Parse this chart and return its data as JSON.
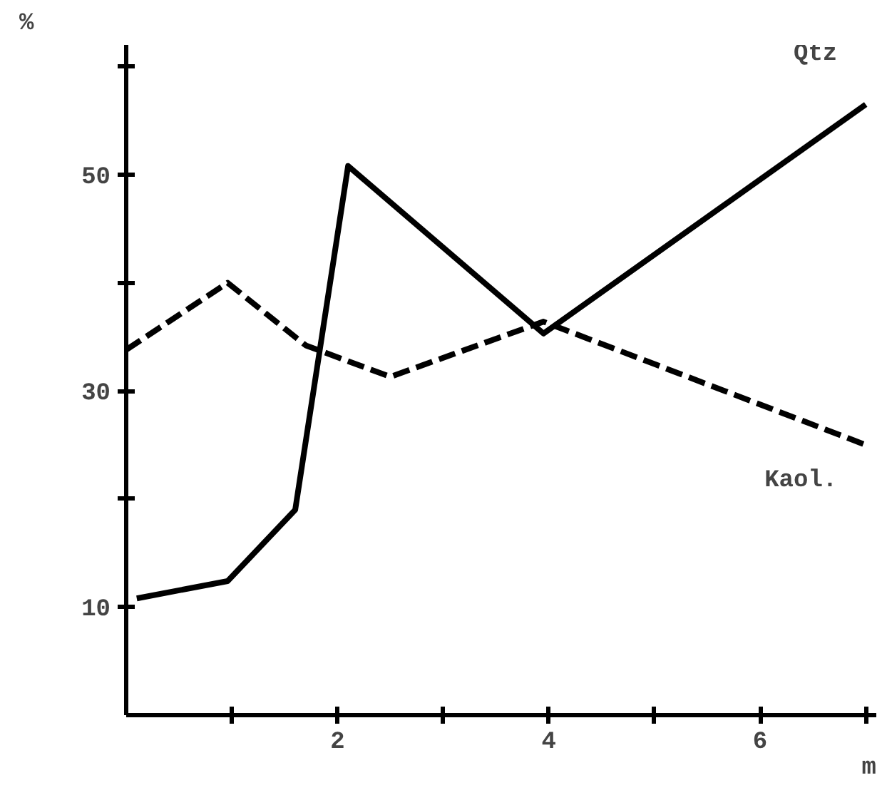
{
  "chart_data": {
    "type": "line",
    "xlabel": "m",
    "ylabel": "%",
    "xlim": [
      0,
      7.1
    ],
    "ylim": [
      0,
      62
    ],
    "xticks": [
      {
        "value": 1,
        "label": null
      },
      2,
      {
        "value": 3,
        "label": null
      },
      4,
      {
        "value": 5,
        "label": null
      },
      6,
      {
        "value": 7,
        "label": null
      }
    ],
    "yticks": [
      10,
      {
        "value": 20,
        "label": null
      },
      30,
      {
        "value": 40,
        "label": null
      },
      50,
      {
        "value": 60,
        "label": null
      }
    ],
    "grid": false,
    "legend": false,
    "series": [
      {
        "name": "Qtz",
        "color": "#000000",
        "line_style": "solid",
        "x": [
          0.1,
          0.96,
          1.6,
          2.1,
          3.95,
          7.0
        ],
        "values": [
          10.8,
          12.4,
          19,
          50.8,
          35.3,
          56.5
        ]
      },
      {
        "name": "Kaol.",
        "color": "#000000",
        "line_style": "dashed",
        "x": [
          0,
          0.96,
          1.7,
          2.5,
          3.95,
          7.0
        ],
        "values": [
          33.8,
          40,
          34.2,
          31.3,
          36.4,
          25
        ]
      }
    ]
  }
}
